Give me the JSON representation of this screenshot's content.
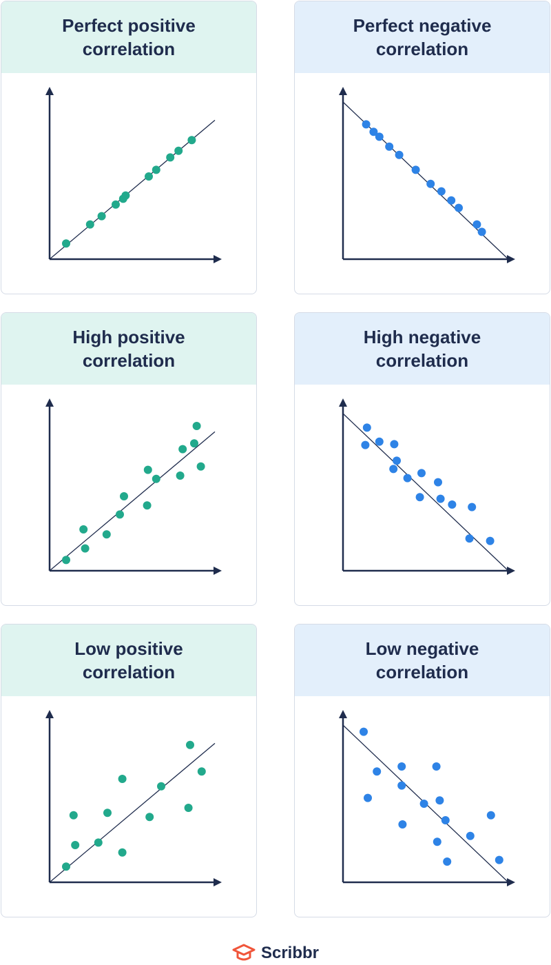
{
  "colors": {
    "positive": "#22a98c",
    "negative": "#2e83e6",
    "axis": "#1f2c4d",
    "positive_header": "#dff4f0",
    "negative_header": "#e3effb",
    "brand_orange": "#f0553a"
  },
  "brand": {
    "name": "Scribbr",
    "icon": "graduation-cap-logo-icon"
  },
  "chart_data": [
    {
      "type": "scatter",
      "title": "Perfect positive\ncorrelation",
      "color": "positive",
      "xlim": [
        0,
        10
      ],
      "ylim": [
        0,
        10
      ],
      "trendline": [
        [
          0,
          0
        ],
        [
          10,
          8.4
        ]
      ],
      "points": [
        [
          1,
          0.95
        ],
        [
          2.45,
          2.1
        ],
        [
          3.15,
          2.6
        ],
        [
          4,
          3.3
        ],
        [
          4.45,
          3.65
        ],
        [
          4.6,
          3.85
        ],
        [
          6,
          5
        ],
        [
          6.45,
          5.4
        ],
        [
          7.3,
          6.15
        ],
        [
          7.8,
          6.55
        ],
        [
          8.6,
          7.2
        ]
      ]
    },
    {
      "type": "scatter",
      "title": "Perfect negative\ncorrelation",
      "color": "negative",
      "xlim": [
        0,
        10
      ],
      "ylim": [
        0,
        10
      ],
      "trendline": [
        [
          0,
          9.5
        ],
        [
          10,
          0
        ]
      ],
      "points": [
        [
          1.4,
          8.15
        ],
        [
          1.85,
          7.7
        ],
        [
          2.2,
          7.4
        ],
        [
          2.8,
          6.8
        ],
        [
          3.4,
          6.3
        ],
        [
          4.4,
          5.4
        ],
        [
          5.3,
          4.55
        ],
        [
          5.95,
          4.1
        ],
        [
          6.55,
          3.55
        ],
        [
          7,
          3.1
        ],
        [
          8.1,
          2.1
        ],
        [
          8.4,
          1.65
        ]
      ]
    },
    {
      "type": "scatter",
      "title": "High positive\ncorrelation",
      "color": "positive",
      "xlim": [
        0,
        10
      ],
      "ylim": [
        0,
        10
      ],
      "trendline": [
        [
          0,
          0
        ],
        [
          10,
          8.4
        ]
      ],
      "points": [
        [
          1,
          0.65
        ],
        [
          2.05,
          2.5
        ],
        [
          2.15,
          1.35
        ],
        [
          3.45,
          2.2
        ],
        [
          4.25,
          3.4
        ],
        [
          4.5,
          4.5
        ],
        [
          5.9,
          3.95
        ],
        [
          5.95,
          6.1
        ],
        [
          6.45,
          5.55
        ],
        [
          7.9,
          5.75
        ],
        [
          8.05,
          7.35
        ],
        [
          8.75,
          7.7
        ],
        [
          8.9,
          8.75
        ],
        [
          9.15,
          6.3
        ]
      ]
    },
    {
      "type": "scatter",
      "title": "High negative\ncorrelation",
      "color": "negative",
      "xlim": [
        0,
        10
      ],
      "ylim": [
        0,
        10
      ],
      "trendline": [
        [
          0,
          9.5
        ],
        [
          10,
          0
        ]
      ],
      "points": [
        [
          1.45,
          8.65
        ],
        [
          1.35,
          7.6
        ],
        [
          2.2,
          7.8
        ],
        [
          3.1,
          7.65
        ],
        [
          3.25,
          6.65
        ],
        [
          3.05,
          6.15
        ],
        [
          3.9,
          5.6
        ],
        [
          4.75,
          5.9
        ],
        [
          4.65,
          4.45
        ],
        [
          5.75,
          5.35
        ],
        [
          5.9,
          4.35
        ],
        [
          6.6,
          4
        ],
        [
          7.8,
          3.85
        ],
        [
          7.65,
          1.95
        ],
        [
          8.9,
          1.8
        ]
      ]
    },
    {
      "type": "scatter",
      "title": "Low positive\ncorrelation",
      "color": "positive",
      "xlim": [
        0,
        10
      ],
      "ylim": [
        0,
        10
      ],
      "trendline": [
        [
          0,
          0
        ],
        [
          10,
          8.4
        ]
      ],
      "points": [
        [
          1,
          0.95
        ],
        [
          1.55,
          2.25
        ],
        [
          1.45,
          4.05
        ],
        [
          2.95,
          2.4
        ],
        [
          3.5,
          4.2
        ],
        [
          4.4,
          1.8
        ],
        [
          4.4,
          6.25
        ],
        [
          6.05,
          3.95
        ],
        [
          6.75,
          5.8
        ],
        [
          8.4,
          4.5
        ],
        [
          8.5,
          8.3
        ],
        [
          9.2,
          6.7
        ]
      ]
    },
    {
      "type": "scatter",
      "title": "Low negative\ncorrelation",
      "color": "negative",
      "xlim": [
        0,
        10
      ],
      "ylim": [
        0,
        10
      ],
      "trendline": [
        [
          0,
          9.5
        ],
        [
          10,
          0
        ]
      ],
      "points": [
        [
          1.25,
          9.1
        ],
        [
          2.05,
          6.7
        ],
        [
          1.5,
          5.1
        ],
        [
          3.55,
          7
        ],
        [
          3.55,
          5.85
        ],
        [
          3.6,
          3.5
        ],
        [
          4.9,
          4.75
        ],
        [
          5.65,
          7
        ],
        [
          5.85,
          4.95
        ],
        [
          6.2,
          3.75
        ],
        [
          5.7,
          2.45
        ],
        [
          6.3,
          1.25
        ],
        [
          7.7,
          2.8
        ],
        [
          8.95,
          4.05
        ],
        [
          9.45,
          1.35
        ]
      ]
    }
  ]
}
